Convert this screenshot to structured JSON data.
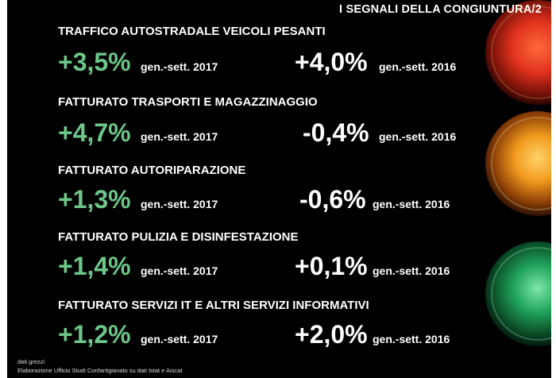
{
  "title": "I SEGNALI DELLA CONGIUNTURA/2",
  "rows": [
    {
      "heading": "TRAFFICO AUTOSTRADALE VEICOLI PESANTI",
      "value_2017": "+3,5%",
      "period_2017": "gen.-sett. 2017",
      "value_2016": "+4,0%",
      "period_2016": "gen.-sett. 2016"
    },
    {
      "heading": "FATTURATO TRASPORTI E MAGAZZINAGGIO",
      "value_2017": "+4,7%",
      "period_2017": "gen.-sett. 2017",
      "value_2016": "-0,4%",
      "period_2016": "gen.-sett. 2016"
    },
    {
      "heading": "FATTURATO AUTORIPARAZIONE",
      "value_2017": "+1,3%",
      "period_2017": "gen.-sett. 2017",
      "value_2016": "-0,6%",
      "period_2016": "gen.-sett. 2016"
    },
    {
      "heading": "FATTURATO PULIZIA E DISINFESTAZIONE",
      "value_2017": "+1,4%",
      "period_2017": "gen.-sett. 2017",
      "value_2016": "+0,1%",
      "period_2016": "gen.-sett. 2016"
    },
    {
      "heading": "FATTURATO SERVIZI IT E ALTRI SERVIZI INFORMATIVI",
      "value_2017": "+1,2%",
      "period_2017": "gen.-sett. 2017",
      "value_2016": "+2,0%",
      "period_2016": "gen.-sett. 2016"
    }
  ],
  "footnote": {
    "line1": "dati grezzi",
    "line2": "Elaborazione Ufficio Studi Confartigianato su dati Istat e Aiscat"
  },
  "colors": {
    "background": "#000000",
    "positive_value": "#6cc788",
    "light_red": "#e0321e",
    "light_amber": "#f29a1e",
    "light_green": "#1fa35a"
  }
}
